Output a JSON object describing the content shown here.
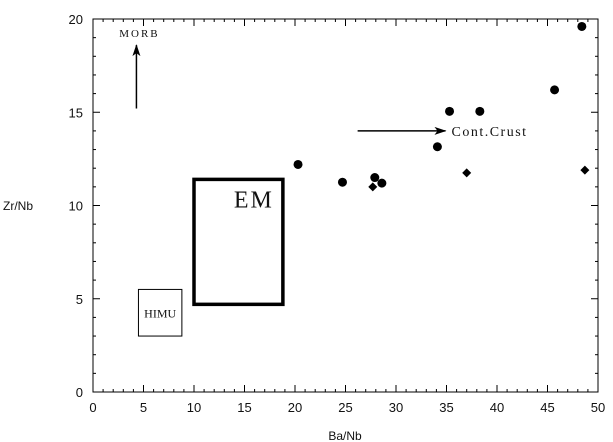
{
  "chart_data": {
    "type": "scatter",
    "xlabel": "Ba/Nb",
    "ylabel": "Zr/Nb",
    "xlim": [
      0,
      50
    ],
    "ylim": [
      0,
      20
    ],
    "xticks": [
      "0",
      "5",
      "10",
      "15",
      "20",
      "25",
      "30",
      "35",
      "40",
      "45",
      "50"
    ],
    "yticks": [
      "0",
      "5",
      "10",
      "15",
      "20"
    ],
    "grid": false,
    "legend": "none",
    "points": [
      {
        "x": 20.3,
        "y": 12.2,
        "shape": "circle"
      },
      {
        "x": 24.7,
        "y": 11.25,
        "shape": "circle"
      },
      {
        "x": 27.7,
        "y": 11.0,
        "shape": "diamond"
      },
      {
        "x": 27.9,
        "y": 11.5,
        "shape": "circle"
      },
      {
        "x": 28.6,
        "y": 11.2,
        "shape": "circle"
      },
      {
        "x": 34.1,
        "y": 13.15,
        "shape": "circle"
      },
      {
        "x": 35.3,
        "y": 15.05,
        "shape": "circle"
      },
      {
        "x": 37.0,
        "y": 11.75,
        "shape": "diamond"
      },
      {
        "x": 38.3,
        "y": 15.05,
        "shape": "circle"
      },
      {
        "x": 45.7,
        "y": 16.2,
        "shape": "circle"
      },
      {
        "x": 48.4,
        "y": 19.6,
        "shape": "circle"
      },
      {
        "x": 48.7,
        "y": 11.9,
        "shape": "diamond"
      }
    ],
    "regions": [
      {
        "label": "EM",
        "x": [
          10,
          18.8
        ],
        "y": [
          4.7,
          11.4
        ],
        "stroke": "thick"
      },
      {
        "label": "HIMU",
        "x": [
          4.5,
          8.8
        ],
        "y": [
          3.0,
          5.5
        ],
        "stroke": "thin"
      }
    ],
    "arrows": [
      {
        "label": "MORB",
        "from": [
          4.3,
          15.2
        ],
        "to": [
          4.3,
          18.6
        ]
      },
      {
        "label": "Cont.Crust",
        "from": [
          26.2,
          14.0
        ],
        "to": [
          34.9,
          14.0
        ]
      }
    ],
    "colors": {
      "marks": "#000000",
      "axes": "#000000"
    }
  }
}
